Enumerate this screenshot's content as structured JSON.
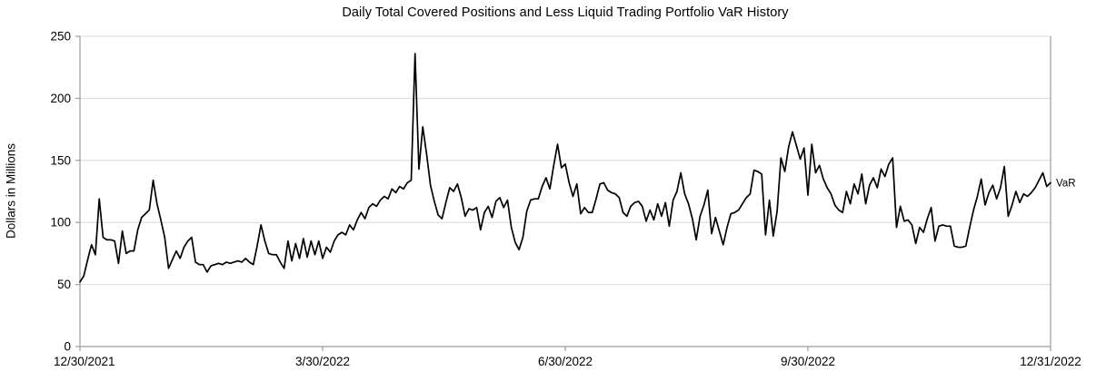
{
  "chart_data": {
    "type": "line",
    "title": "Daily Total Covered Positions and Less Liquid Trading Portfolio VaR History",
    "ylabel": "Dollars in Millions",
    "ylim": [
      0,
      250
    ],
    "y_ticks": [
      0,
      50,
      100,
      150,
      200,
      250
    ],
    "x_tick_labels": [
      "12/30/2021",
      "3/30/2022",
      "6/30/2022",
      "9/30/2022",
      "12/31/2022"
    ],
    "x_tick_day_index": [
      0,
      63,
      126,
      189,
      252
    ],
    "grid": "horizontal-only",
    "legend_position": "end-of-line",
    "colors": {
      "line": "#000000",
      "grid": "#d9d9d9",
      "axis": "#9b9b9b",
      "text": "#000000",
      "background": "#ffffff"
    },
    "series": [
      {
        "name": "VaR",
        "values": [
          52,
          57,
          70,
          82,
          74,
          119,
          88,
          86,
          86,
          85,
          67,
          93,
          75,
          77,
          77,
          94,
          104,
          107,
          110,
          134,
          115,
          102,
          88,
          63,
          70,
          77,
          71,
          80,
          85,
          88,
          68,
          66,
          66,
          60,
          65,
          66,
          67,
          66,
          68,
          67,
          68,
          69,
          68,
          71,
          68,
          66,
          81,
          98,
          85,
          75,
          74,
          74,
          68,
          63,
          85,
          69,
          83,
          71,
          87,
          72,
          85,
          74,
          85,
          71,
          80,
          76,
          85,
          90,
          92,
          90,
          98,
          94,
          102,
          108,
          103,
          112,
          115,
          113,
          118,
          121,
          119,
          127,
          124,
          129,
          127,
          132,
          134,
          236,
          143,
          177,
          155,
          130,
          117,
          106,
          103,
          116,
          128,
          125,
          131,
          120,
          105,
          111,
          110,
          112,
          94,
          108,
          113,
          104,
          117,
          120,
          112,
          118,
          96,
          84,
          78,
          88,
          109,
          118,
          119,
          119,
          129,
          136,
          127,
          146,
          163,
          144,
          147,
          132,
          121,
          131,
          107,
          112,
          108,
          108,
          119,
          131,
          132,
          126,
          124,
          123,
          120,
          108,
          105,
          113,
          116,
          117,
          113,
          101,
          110,
          102,
          115,
          105,
          116,
          97,
          118,
          125,
          140,
          123,
          115,
          103,
          86,
          105,
          114,
          126,
          91,
          104,
          93,
          82,
          96,
          107,
          108,
          110,
          115,
          120,
          123,
          142,
          141,
          139,
          90,
          118,
          89,
          109,
          152,
          141,
          161,
          173,
          162,
          151,
          160,
          122,
          163,
          140,
          146,
          135,
          128,
          123,
          114,
          110,
          108,
          125,
          115,
          131,
          123,
          139,
          115,
          130,
          136,
          128,
          143,
          137,
          147,
          152,
          96,
          113,
          101,
          102,
          98,
          83,
          96,
          92,
          103,
          112,
          85,
          97,
          98,
          97,
          97,
          81,
          80,
          80,
          81,
          96,
          110,
          121,
          135,
          114,
          124,
          130,
          119,
          128,
          145,
          105,
          114,
          125,
          116,
          123,
          121,
          124,
          128,
          134,
          140,
          129,
          132
        ]
      }
    ]
  }
}
